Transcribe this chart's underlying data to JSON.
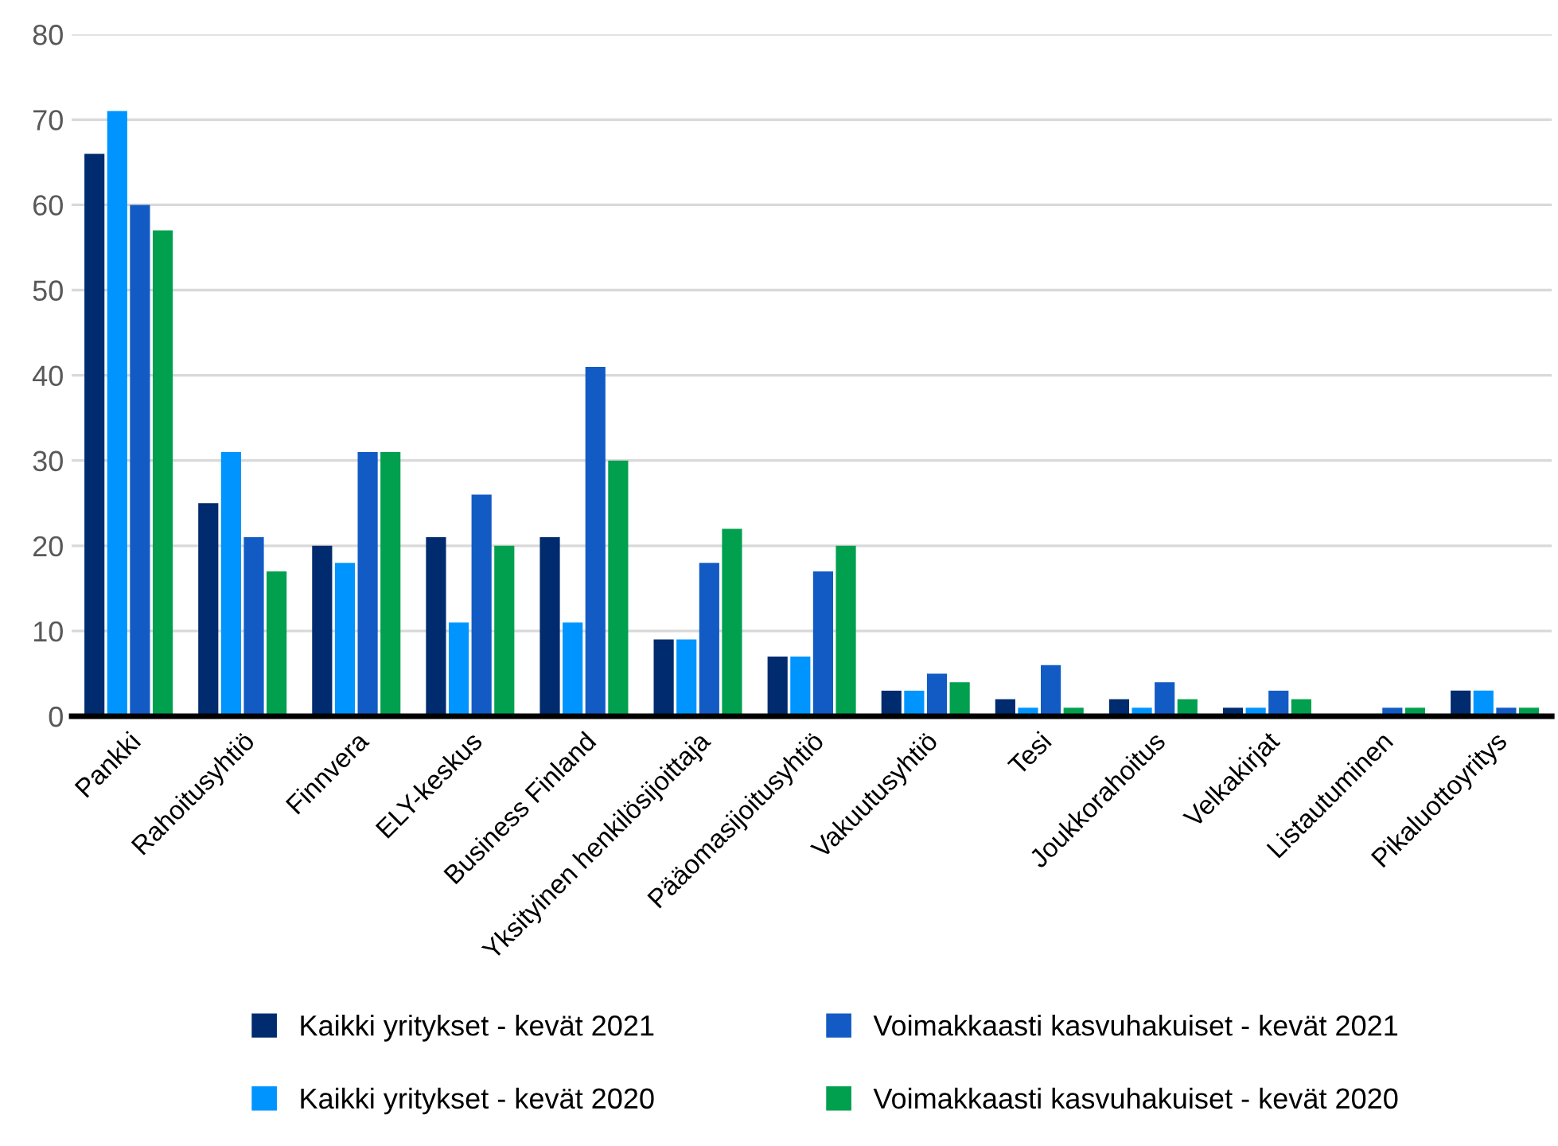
{
  "chart_data": {
    "type": "bar",
    "categories": [
      "Pankki",
      "Rahoitusyhtiö",
      "Finnvera",
      "ELY-keskus",
      "Business Finland",
      "Yksityinen henkilösijoittaja",
      "Pääomasijoitusyhtiö",
      "Vakuutusyhtiö",
      "Tesi",
      "Joukkorahoitus",
      "Velkakirjat",
      "Listautuminen",
      "Pikaluottoyritys"
    ],
    "series": [
      {
        "name": "Kaikki yritykset - kevät 2021",
        "color": "#002b6e",
        "values": [
          66,
          25,
          20,
          21,
          21,
          9,
          7,
          3,
          2,
          2,
          1,
          0,
          3
        ]
      },
      {
        "name": "Kaikki yritykset - kevät 2020",
        "color": "#0094ff",
        "values": [
          71,
          31,
          18,
          11,
          11,
          9,
          7,
          3,
          1,
          1,
          1,
          0,
          3
        ]
      },
      {
        "name": "Voimakkaasti kasvuhakuiset - kevät 2021",
        "color": "#135bc4",
        "values": [
          60,
          21,
          31,
          26,
          41,
          18,
          17,
          5,
          6,
          4,
          3,
          1,
          1
        ]
      },
      {
        "name": "Voimakkaasti kasvuhakuiset - kevät 2020",
        "color": "#00a04e",
        "values": [
          57,
          17,
          31,
          20,
          30,
          22,
          20,
          4,
          1,
          2,
          2,
          1,
          1
        ]
      }
    ],
    "ylim": [
      0,
      80
    ],
    "yticks": [
      0,
      10,
      20,
      30,
      40,
      50,
      60,
      70,
      80
    ],
    "grid": "y",
    "legend": "bottom"
  }
}
